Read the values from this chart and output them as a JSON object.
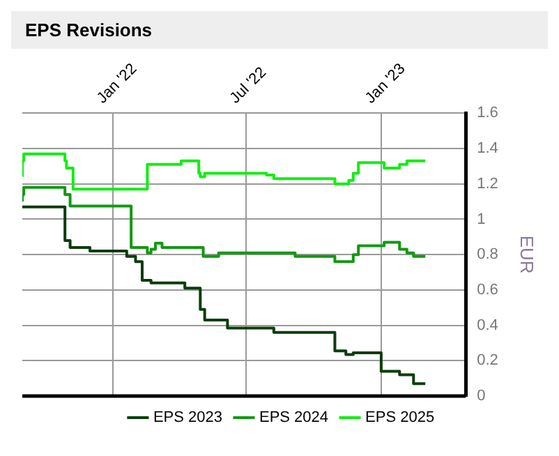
{
  "chart_data": {
    "type": "step",
    "title": "EPS Revisions",
    "ylabel": "EUR",
    "legend": "bottom",
    "grid": true,
    "marker": "none",
    "line_style": "solid",
    "xlim": [
      "2021-08-31",
      "2023-04-26"
    ],
    "xticks": [
      {
        "value": "2022-01-01",
        "label": "Jan '22"
      },
      {
        "value": "2022-07-01",
        "label": "Jul '22"
      },
      {
        "value": "2023-01-01",
        "label": "Jan '23"
      }
    ],
    "ylim": [
      0,
      1.6
    ],
    "yticks": [
      0,
      0.2,
      0.4,
      0.6,
      0.8,
      1,
      1.2,
      1.4,
      1.6
    ],
    "series": [
      {
        "name": "EPS 2023",
        "color": "#0b3d0b",
        "x": [
          "2021-08-31",
          "2021-10-28",
          "2021-11-04",
          "2021-12-01",
          "2022-01-20",
          "2022-02-01",
          "2022-02-10",
          "2022-02-22",
          "2022-04-09",
          "2022-04-30",
          "2022-05-06",
          "2022-06-06",
          "2022-08-08",
          "2022-10-30",
          "2022-11-14",
          "2022-11-24",
          "2023-01-01",
          "2023-01-26",
          "2023-02-14",
          "2023-03-02"
        ],
        "values": [
          1.075,
          1.07,
          0.88,
          0.84,
          0.82,
          0.79,
          0.76,
          0.655,
          0.64,
          0.61,
          0.49,
          0.43,
          0.385,
          0.36,
          0.255,
          0.235,
          0.245,
          0.14,
          0.12,
          0.07
        ]
      },
      {
        "name": "EPS 2024",
        "color": "#119911",
        "x": [
          "2021-08-31",
          "2021-09-02",
          "2021-10-28",
          "2021-11-04",
          "2022-01-26",
          "2022-02-17",
          "2022-02-22",
          "2022-02-28",
          "2022-03-09",
          "2022-05-04",
          "2022-05-25",
          "2022-09-06",
          "2022-10-30",
          "2022-11-24",
          "2022-12-01",
          "2023-01-05",
          "2023-01-26",
          "2023-02-05",
          "2023-02-14",
          "2023-03-02"
        ],
        "values": [
          1.1,
          1.14,
          1.18,
          1.14,
          1.075,
          0.84,
          0.81,
          0.83,
          0.865,
          0.84,
          0.79,
          0.81,
          0.79,
          0.76,
          0.8,
          0.85,
          0.87,
          0.83,
          0.81,
          0.79
        ]
      },
      {
        "name": "EPS 2025",
        "color": "#11ee11",
        "x": [
          "2021-08-31",
          "2021-09-02",
          "2021-10-28",
          "2021-10-30",
          "2021-11-08",
          "2022-02-17",
          "2022-04-04",
          "2022-04-28",
          "2022-04-30",
          "2022-05-06",
          "2022-07-29",
          "2022-08-08",
          "2022-10-30",
          "2022-11-18",
          "2022-11-24",
          "2022-12-01",
          "2023-01-05",
          "2023-01-26",
          "2023-02-05",
          "2023-03-02"
        ],
        "values": [
          1.24,
          1.33,
          1.37,
          1.33,
          1.29,
          1.17,
          1.31,
          1.33,
          1.26,
          1.24,
          1.26,
          1.25,
          1.23,
          1.2,
          1.22,
          1.26,
          1.32,
          1.29,
          1.31,
          1.33
        ]
      }
    ]
  }
}
